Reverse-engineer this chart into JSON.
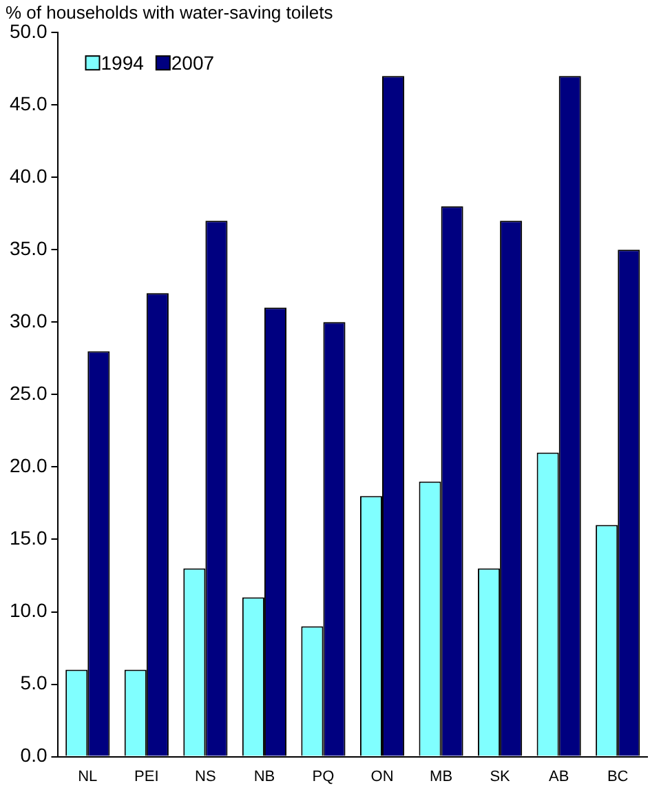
{
  "chart_data": {
    "type": "bar",
    "title": "% of households with water-saving toilets",
    "categories": [
      "NL",
      "PEI",
      "NS",
      "NB",
      "PQ",
      "ON",
      "MB",
      "SK",
      "AB",
      "BC"
    ],
    "series": [
      {
        "name": "1994",
        "color": "#80ffff",
        "values": [
          6,
          6,
          13,
          11,
          9,
          18,
          19,
          13,
          21,
          16
        ]
      },
      {
        "name": "2007",
        "color": "#000080",
        "values": [
          28,
          32,
          37,
          31,
          30,
          47,
          38,
          37,
          47,
          35
        ]
      }
    ],
    "ylim": [
      0,
      50
    ],
    "yticks": [
      {
        "value": 0,
        "label": "0.0"
      },
      {
        "value": 5,
        "label": "5.0"
      },
      {
        "value": 10,
        "label": "10.0"
      },
      {
        "value": 15,
        "label": "15.0"
      },
      {
        "value": 20,
        "label": "20.0"
      },
      {
        "value": 25,
        "label": "25.0"
      },
      {
        "value": 30,
        "label": "30.0"
      },
      {
        "value": 35,
        "label": "35.0"
      },
      {
        "value": 40,
        "label": "40.0"
      },
      {
        "value": 45,
        "label": "45.0"
      },
      {
        "value": 50,
        "label": "50.0"
      }
    ],
    "grid": false,
    "legend": "top left"
  }
}
